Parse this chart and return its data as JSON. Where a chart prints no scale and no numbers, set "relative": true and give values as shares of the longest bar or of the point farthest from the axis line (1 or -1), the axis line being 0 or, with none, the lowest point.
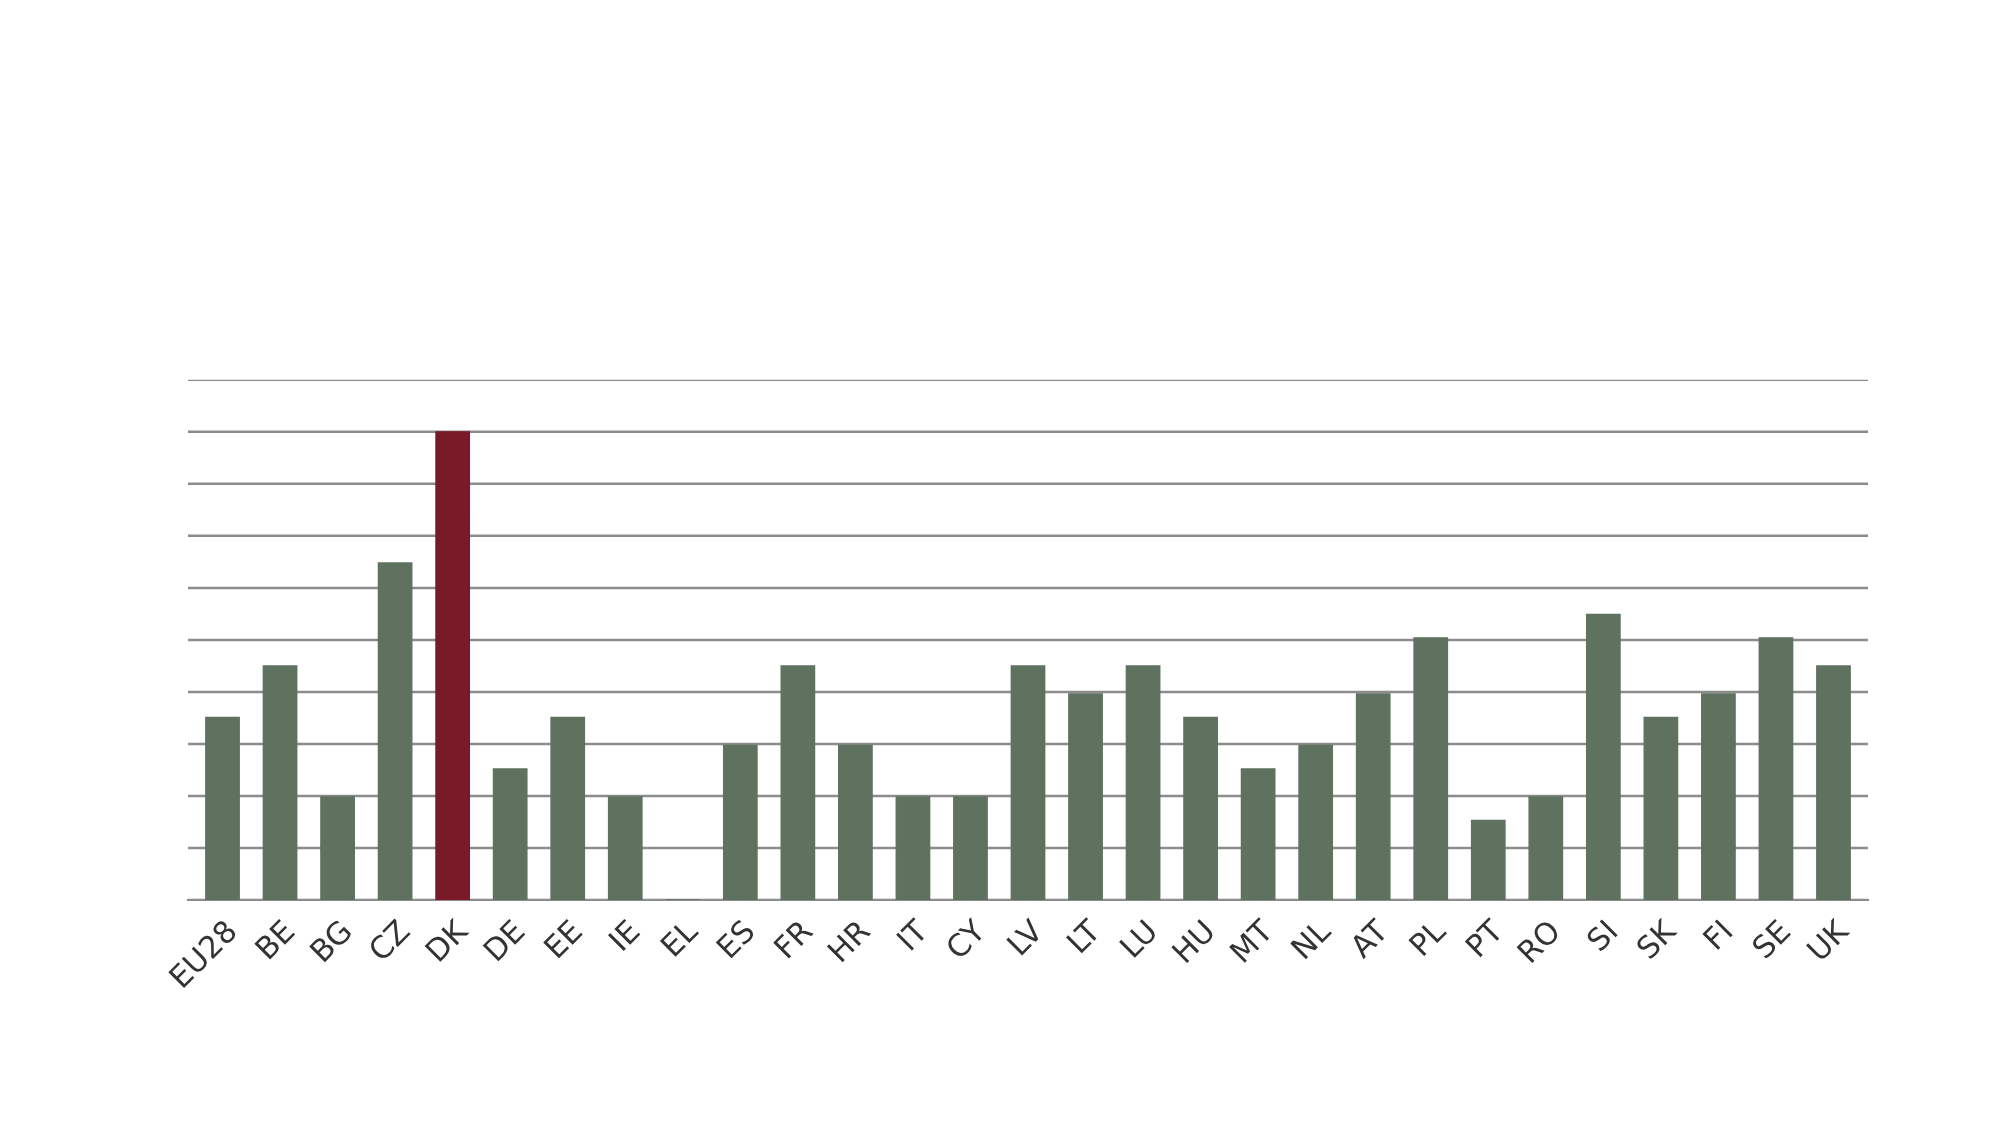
{
  "chart_data": {
    "type": "bar",
    "relative": true,
    "grid": "y",
    "categories": [
      "EU28",
      "BE",
      "BG",
      "CZ",
      "DK",
      "DE",
      "EE",
      "IE",
      "EL",
      "ES",
      "FR",
      "HR",
      "IT",
      "CY",
      "LV",
      "LT",
      "LU",
      "HU",
      "MT",
      "NL",
      "AT",
      "PL",
      "PT",
      "RO",
      "SI",
      "SK",
      "FI",
      "SE",
      "UK"
    ],
    "values": [
      0.39,
      0.5,
      0.22,
      0.72,
      1,
      0.28,
      0.39,
      0.22,
      0,
      0.33,
      0.5,
      0.33,
      0.22,
      0.22,
      0.5,
      0.44,
      0.5,
      0.39,
      0.28,
      0.33,
      0.44,
      0.56,
      0.17,
      0.22,
      0.61,
      0.39,
      0.44,
      0.56,
      0.5
    ],
    "colors": [
      "#5f7260",
      "#5f7260",
      "#5f7260",
      "#5f7260",
      "#7a1a28",
      "#5f7260",
      "#5f7260",
      "#5f7260",
      "#5f7260",
      "#5f7260",
      "#5f7260",
      "#5f7260",
      "#5f7260",
      "#5f7260",
      "#5f7260",
      "#5f7260",
      "#5f7260",
      "#5f7260",
      "#5f7260",
      "#5f7260",
      "#5f7260",
      "#5f7260",
      "#5f7260",
      "#5f7260",
      "#5f7260",
      "#5f7260",
      "#5f7260",
      "#5f7260",
      "#5f7260"
    ]
  }
}
